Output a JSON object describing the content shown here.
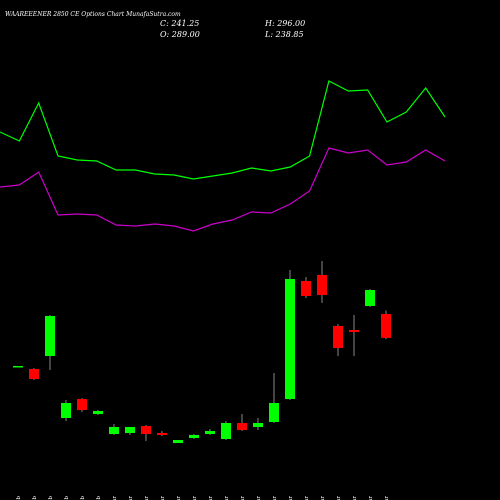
{
  "chart_data": {
    "type": "candlestick",
    "title": "WAAREEENER 2850 CE Options Chart MunafaSutra.com",
    "ohlc_labels": [
      "C: 241.25",
      "H: 296.00",
      "O: 289.00",
      "L: 238.85"
    ],
    "categories": [
      "20 Feb",
      "21 Feb",
      "24 Feb",
      "25 Feb",
      "27 Feb",
      "28 Feb",
      "03 Mar",
      "04 Mar",
      "05 Mar",
      "06 Mar",
      "07 Mar",
      "10 Mar",
      "11 Mar",
      "12 Mar",
      "13 Mar",
      "17 Mar",
      "18 Mar",
      "19 Mar",
      "20 Mar",
      "21 Mar",
      "24 Mar",
      "25 Mar",
      "26 Mar",
      "27 Mar"
    ],
    "open": [
      185,
      179,
      205,
      81,
      119,
      89,
      49,
      51,
      65,
      51,
      31,
      41,
      49,
      39,
      71,
      63,
      73,
      119,
      355,
      367,
      265,
      257,
      305,
      289
    ],
    "high": [
      185,
      181,
      287,
      117,
      121,
      97,
      69,
      63,
      67,
      55,
      37,
      49,
      59,
      75,
      89,
      81,
      171,
      377,
      363,
      395,
      269,
      287,
      339,
      296
    ],
    "low": [
      185,
      157,
      177,
      75,
      93,
      87,
      47,
      47,
      35,
      45,
      31,
      39,
      47,
      37,
      55,
      57,
      71,
      117,
      321,
      311,
      205,
      205,
      303,
      238.85
    ],
    "close": [
      185,
      159,
      285,
      111,
      97,
      95,
      63,
      63,
      49,
      47,
      37,
      47,
      55,
      71,
      57,
      71,
      111,
      359,
      325,
      327,
      221,
      253,
      337,
      241.25
    ],
    "up_color": "#00ff00",
    "down_color": "#ff0000",
    "lines": [
      {
        "color": "#00ff00",
        "values": [
          368,
          359,
          397,
          344,
          340,
          339,
          330,
          330,
          326,
          325,
          321,
          324,
          327,
          332,
          329,
          333,
          344,
          419,
          409,
          410,
          378,
          388,
          412,
          383
        ]
      },
      {
        "color": "#cc00cc",
        "values": [
          313,
          315,
          328,
          285,
          286,
          285,
          275,
          274,
          276,
          274,
          269,
          276,
          280,
          288,
          287,
          296,
          309,
          352,
          347,
          350,
          335,
          338,
          350,
          339
        ]
      }
    ]
  }
}
